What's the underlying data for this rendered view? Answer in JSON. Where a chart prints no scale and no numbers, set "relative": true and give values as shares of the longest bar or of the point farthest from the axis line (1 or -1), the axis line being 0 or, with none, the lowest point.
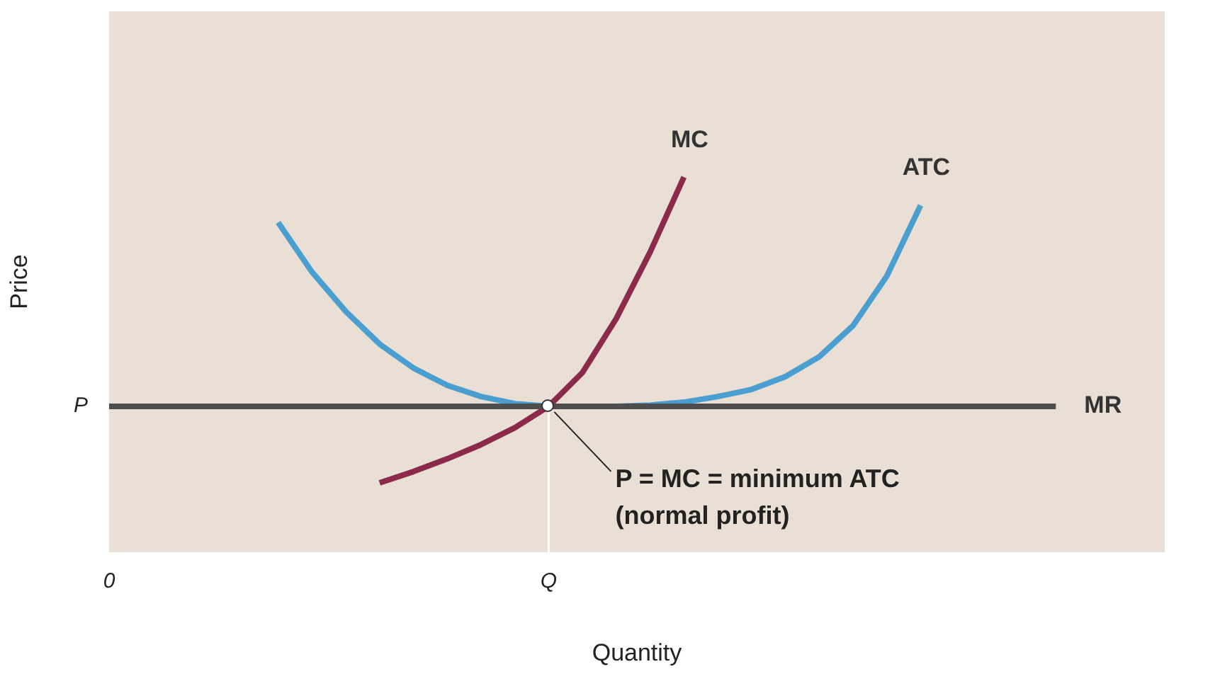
{
  "chart_data": {
    "type": "line",
    "relative": true,
    "xlabel": "Quantity",
    "ylabel": "Price",
    "categories": [
      "0",
      null,
      null,
      null,
      null,
      null,
      null,
      null,
      null,
      null,
      null,
      null,
      null,
      "Q",
      null,
      null,
      null,
      null,
      null,
      null,
      null,
      null,
      null,
      null,
      null,
      null,
      null,
      null,
      null
    ],
    "series": [
      {
        "name": "MR",
        "color": "#4d4d4d",
        "values": [
          0.389,
          0.389,
          0.389,
          0.389,
          0.389,
          0.389,
          0.389,
          0.389,
          0.389,
          0.389,
          0.389,
          0.389,
          0.389,
          0.389,
          0.389,
          0.389,
          0.389,
          0.389,
          0.389,
          0.389,
          0.389,
          0.389,
          0.389,
          0.389,
          0.389,
          0.389,
          0.389,
          0.389,
          0.389
        ]
      },
      {
        "name": "ATC",
        "color": "#4a9fd0",
        "values": [
          null,
          null,
          null,
          null,
          null,
          0.879,
          0.747,
          0.642,
          0.555,
          0.491,
          0.445,
          0.415,
          0.396,
          0.389,
          0.389,
          0.389,
          0.392,
          0.4,
          0.415,
          0.434,
          0.468,
          0.521,
          0.604,
          0.736,
          0.925,
          null,
          null,
          null,
          null
        ]
      },
      {
        "name": "MC",
        "color": "#8b2a4a",
        "values": [
          null,
          null,
          null,
          null,
          null,
          null,
          null,
          null,
          0.185,
          0.215,
          0.249,
          0.287,
          0.332,
          0.389,
          0.479,
          0.623,
          0.8,
          1,
          null,
          null,
          null,
          null,
          null,
          null,
          null,
          null,
          null,
          null,
          null
        ]
      }
    ],
    "ref_lines": [
      {
        "axis": "x",
        "value": "Q",
        "color": "#ffffff"
      }
    ],
    "annotations": [
      {
        "text": "P = MC = minimum ATC\n(normal profit)",
        "x": "Q",
        "y": 0.389
      },
      "P"
    ]
  }
}
